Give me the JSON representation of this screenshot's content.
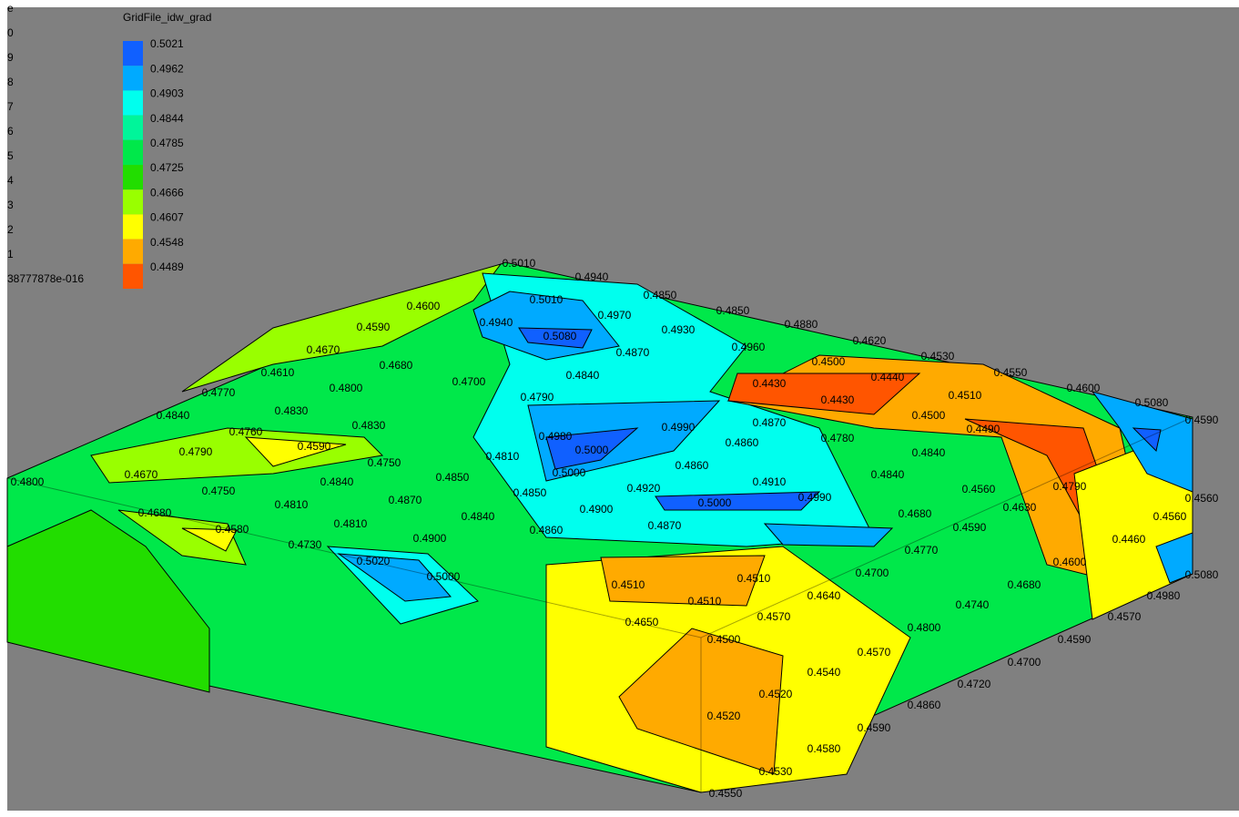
{
  "legend": {
    "title": "GridFile_idw_grad",
    "items": [
      {
        "label": "0.5021",
        "color": "#1060ff"
      },
      {
        "label": "0.4962",
        "color": "#00aaff"
      },
      {
        "label": "0.4903",
        "color": "#00ffee"
      },
      {
        "label": "0.4844",
        "color": "#00f59a"
      },
      {
        "label": "0.4785",
        "color": "#00e84a"
      },
      {
        "label": "0.4725",
        "color": "#22dd00"
      },
      {
        "label": "0.4666",
        "color": "#99ff00"
      },
      {
        "label": "0.4607",
        "color": "#ffff00"
      },
      {
        "label": "0.4548",
        "color": "#ffaa00"
      },
      {
        "label": "0.4489",
        "color": "#ff5500"
      }
    ]
  },
  "cut_legend": [
    "e",
    "0",
    "9",
    "8",
    "7",
    "6",
    "5",
    "4",
    "3",
    "2",
    "1",
    "38777878e-016"
  ],
  "contour_labels": [
    "0.5010",
    "0.4940",
    "0.4850",
    "0.4850",
    "0.4880",
    "0.4620",
    "0.4530",
    "0.4550",
    "0.4600",
    "0.5080",
    "0.4590",
    "0.4560",
    "0.5080",
    "0.4980",
    "0.4570",
    "0.4590",
    "0.4700",
    "0.4720",
    "0.4860",
    "0.4590",
    "0.4580",
    "0.4530",
    "0.4550",
    "0.4800",
    "0.5010",
    "0.4970",
    "0.4930",
    "0.4960",
    "0.5080",
    "0.4940",
    "0.4500",
    "0.4440",
    "0.4430",
    "0.4430",
    "0.4510",
    "0.4500",
    "0.4490",
    "0.4680",
    "0.4700",
    "0.4790",
    "0.4840",
    "0.4870",
    "0.4830",
    "0.4800",
    "0.4610",
    "0.4670",
    "0.4590",
    "0.4600",
    "0.4770",
    "0.4840",
    "0.4830",
    "0.4760",
    "0.4790",
    "0.4670",
    "0.4590",
    "0.4750",
    "0.4810",
    "0.4850",
    "0.4980",
    "0.5000",
    "0.5000",
    "0.4990",
    "0.4860",
    "0.4860",
    "0.4920",
    "0.5000",
    "0.4910",
    "0.4990",
    "0.4870",
    "0.4780",
    "0.4840",
    "0.4840",
    "0.4560",
    "0.4630",
    "0.4790",
    "0.4590",
    "0.4680",
    "0.4770",
    "0.4700",
    "0.4640",
    "0.4570",
    "0.4500",
    "0.4540",
    "0.4520",
    "0.4520",
    "0.4510",
    "0.4510",
    "0.4510",
    "0.4650",
    "0.4900",
    "0.4870",
    "0.4860",
    "0.4900",
    "0.5020",
    "0.5000",
    "0.4840",
    "0.4850",
    "0.4870",
    "0.4840",
    "0.4810",
    "0.4810",
    "0.4730",
    "0.4580",
    "0.4680",
    "0.4750",
    "0.4600",
    "0.4680",
    "0.4740",
    "0.4800",
    "0.4570",
    "0.4460",
    "0.4560"
  ]
}
